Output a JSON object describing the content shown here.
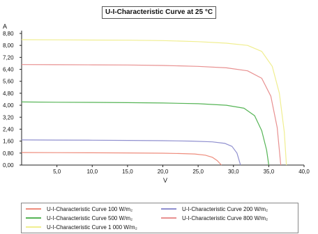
{
  "chart_data": {
    "type": "line",
    "title": "U-I-Characteristic Curve at 25 °C",
    "xlabel": "V",
    "ylabel": "A",
    "xlim": [
      0,
      40
    ],
    "ylim": [
      0,
      8.8
    ],
    "xticks": [
      5,
      10,
      15,
      20,
      25,
      30,
      35,
      40
    ],
    "xtick_labels": [
      "5,0",
      "10,0",
      "15,0",
      "20,0",
      "25,0",
      "30,0",
      "35,0",
      "40,0"
    ],
    "yticks": [
      0,
      0.8,
      1.6,
      2.4,
      3.2,
      4.0,
      4.8,
      5.6,
      6.4,
      7.2,
      8.0,
      8.8
    ],
    "ytick_labels": [
      "0,00",
      "0,80",
      "1,60",
      "2,40",
      "3,20",
      "4,00",
      "4,80",
      "5,60",
      "6,40",
      "7,20",
      "8,00",
      "8,80"
    ],
    "grid": false,
    "legend_position": "bottom",
    "series": [
      {
        "name": "U-I-Characteristic Curve 100 W/m₂",
        "color": "#ee8c7c",
        "x": [
          0,
          5,
          10,
          15,
          20,
          22.5,
          24.5,
          26,
          27,
          27.7,
          28.3
        ],
        "y": [
          0.84,
          0.83,
          0.82,
          0.81,
          0.79,
          0.77,
          0.74,
          0.66,
          0.52,
          0.3,
          0
        ]
      },
      {
        "name": "U-I-Characteristic Curve 200 W/m₂",
        "color": "#8f8fcf",
        "x": [
          0,
          5,
          10,
          15,
          20,
          24,
          27,
          28.8,
          29.8,
          30.5,
          31.0
        ],
        "y": [
          1.68,
          1.67,
          1.66,
          1.65,
          1.63,
          1.6,
          1.55,
          1.45,
          1.25,
          0.8,
          0
        ]
      },
      {
        "name": "U-I-Characteristic Curve 500 W/m₂",
        "color": "#55b455",
        "x": [
          0,
          5,
          10,
          15,
          20,
          25,
          29,
          31.5,
          33,
          34.0,
          34.7,
          35.0
        ],
        "y": [
          4.22,
          4.2,
          4.19,
          4.17,
          4.15,
          4.1,
          4.0,
          3.8,
          3.3,
          2.3,
          1.0,
          0
        ]
      },
      {
        "name": "U-I-Characteristic Curve 800 W/m₂",
        "color": "#e89090",
        "x": [
          0,
          5,
          10,
          15,
          20,
          25,
          29,
          32,
          34,
          35.3,
          36.2,
          36.7
        ],
        "y": [
          6.72,
          6.71,
          6.7,
          6.69,
          6.66,
          6.6,
          6.5,
          6.3,
          5.8,
          4.6,
          2.5,
          0
        ]
      },
      {
        "name": "U-I-Characteristic Curve 1 000 W/m₂",
        "color": "#f0ee90",
        "x": [
          0,
          5,
          10,
          15,
          20,
          25,
          29,
          32,
          34,
          35.5,
          36.5,
          37.2,
          37.5
        ],
        "y": [
          8.38,
          8.37,
          8.36,
          8.35,
          8.32,
          8.25,
          8.15,
          8.0,
          7.6,
          6.6,
          4.8,
          2.2,
          0
        ]
      }
    ]
  }
}
